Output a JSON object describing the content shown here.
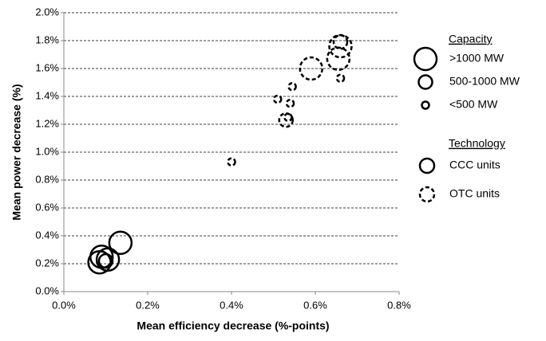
{
  "chart_data": {
    "type": "scatter",
    "xlabel": "Mean efficiency decrease  (%-points)",
    "ylabel": "Mean power decrease (%)",
    "xlim": [
      0,
      0.8
    ],
    "ylim": [
      0,
      2.0
    ],
    "xticks": [
      {
        "value": 0,
        "label": "0.0%"
      },
      {
        "value": 0.2,
        "label": "0.2%"
      },
      {
        "value": 0.4,
        "label": "0.4%"
      },
      {
        "value": 0.6,
        "label": "0.6%"
      },
      {
        "value": 0.8,
        "label": "0.8%"
      }
    ],
    "yticks": [
      {
        "value": 0,
        "label": "0.0%"
      },
      {
        "value": 0.2,
        "label": "0.2%"
      },
      {
        "value": 0.4,
        "label": "0.4%"
      },
      {
        "value": 0.6,
        "label": "0.6%"
      },
      {
        "value": 0.8,
        "label": "0.8%"
      },
      {
        "value": 1.0,
        "label": "1.0%"
      },
      {
        "value": 1.2,
        "label": "1.2%"
      },
      {
        "value": 1.4,
        "label": "1.4%"
      },
      {
        "value": 1.6,
        "label": "1.6%"
      },
      {
        "value": 1.8,
        "label": "1.8%"
      },
      {
        "value": 2.0,
        "label": "2.0%"
      }
    ],
    "grid": true,
    "size_legend": {
      "title": "Capacity",
      "labels": [
        ">1000 MW",
        "500-1000 MW",
        "<500 MW"
      ]
    },
    "legend_title": "Technology",
    "series": [
      {
        "name": "CCC units",
        "color": "#000000",
        "line_style": "solid",
        "x": [
          0.085,
          0.09,
          0.105,
          0.1,
          0.135
        ],
        "values": [
          0.21,
          0.25,
          0.23,
          0.22,
          0.35
        ],
        "capacity": [
          ">1000 MW",
          ">1000 MW",
          ">1000 MW",
          "500-1000 MW",
          ">1000 MW"
        ]
      },
      {
        "name": "OTC units",
        "color": "#000000",
        "line_style": "dashed",
        "x": [
          0.4,
          0.51,
          0.54,
          0.53,
          0.535,
          0.545,
          0.59,
          0.655,
          0.66,
          0.66,
          0.66
        ],
        "values": [
          0.93,
          1.38,
          1.35,
          1.23,
          1.25,
          1.47,
          1.6,
          1.67,
          1.76,
          1.79,
          1.53
        ],
        "capacity": [
          "<500 MW",
          "<500 MW",
          "<500 MW",
          "500-1000 MW",
          "<500 MW",
          "<500 MW",
          ">1000 MW",
          ">1000 MW",
          ">1000 MW",
          "500-1000 MW",
          "<500 MW"
        ]
      }
    ]
  }
}
